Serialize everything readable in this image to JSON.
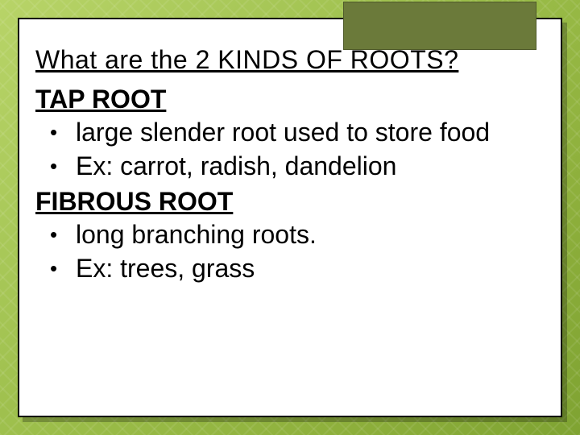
{
  "slide": {
    "background_gradient": [
      "#b8d468",
      "#a8c858",
      "#9abc48",
      "#8eb03c",
      "#7fa332"
    ],
    "card_background": "#ffffff",
    "card_border": "#000000",
    "corner_rect_color": "#6b7a3a",
    "title": "What are the 2 KINDS OF ROOTS?",
    "title_fontsize": 32,
    "sections": [
      {
        "heading": "TAP ROOT",
        "heading_fontsize": 32,
        "bullets": [
          "large slender root used to store food",
          "Ex: carrot, radish, dandelion"
        ]
      },
      {
        "heading": "FIBROUS ROOT",
        "heading_fontsize": 32,
        "bullets": [
          "long branching roots.",
          "Ex: trees, grass"
        ]
      }
    ],
    "bullet_fontsize": 32,
    "text_color": "#000000"
  }
}
